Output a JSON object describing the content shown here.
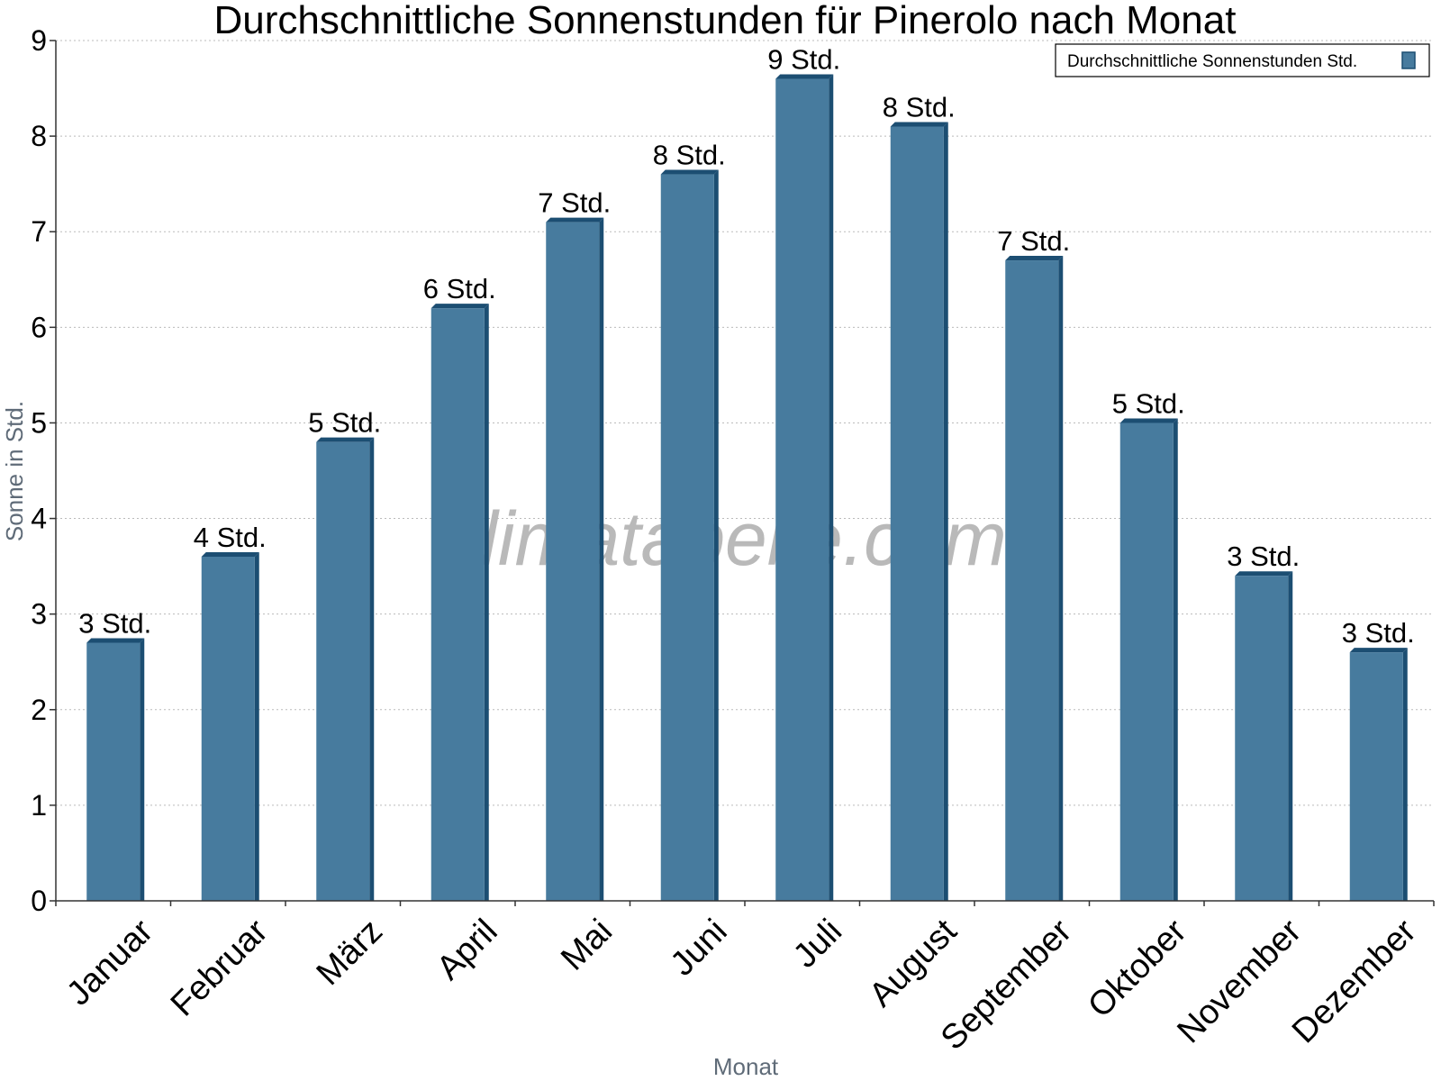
{
  "chart_data": {
    "type": "bar",
    "title": "Durchschnittliche Sonnenstunden für Pinerolo nach Monat",
    "xlabel": "Monat",
    "ylabel": "Sonne in Std.",
    "ylim": [
      0,
      9
    ],
    "yticks": [
      "0",
      "1",
      "2",
      "3",
      "4",
      "5",
      "6",
      "7",
      "8",
      "9"
    ],
    "grid": "horizontal dotted",
    "legend_position": "top-right",
    "categories": [
      "Januar",
      "Februar",
      "März",
      "April",
      "Mai",
      "Juni",
      "Juli",
      "August",
      "September",
      "Oktober",
      "November",
      "Dezember"
    ],
    "series": [
      {
        "name": "Durchschnittliche Sonnenstunden Std.",
        "values": [
          2.7,
          3.6,
          4.8,
          6.2,
          7.1,
          7.6,
          8.6,
          8.1,
          6.7,
          5.0,
          3.4,
          2.6
        ],
        "labels": [
          "3 Std.",
          "4 Std.",
          "5 Std.",
          "6 Std.",
          "7 Std.",
          "8 Std.",
          "9 Std.",
          "8 Std.",
          "7 Std.",
          "5 Std.",
          "3 Std.",
          "3 Std."
        ],
        "color": "#477b9e",
        "edge_color": "#1c4e72"
      }
    ],
    "watermark": "klimatabelle.com"
  }
}
